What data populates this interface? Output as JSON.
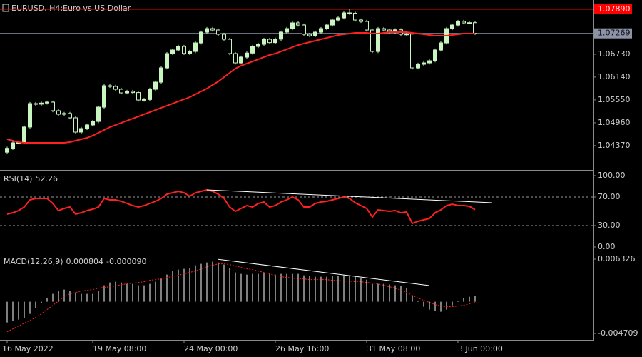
{
  "chart_data": [
    {
      "type": "candlestick",
      "title": "EURUSD, H4:",
      "subtitle": "Euro vs US Dollar",
      "categories": [
        "16 May 2022",
        null,
        null,
        null,
        null,
        null,
        null,
        null,
        null,
        null,
        null,
        null,
        null,
        null,
        null,
        "19 May 08:00",
        null,
        null,
        null,
        null,
        null,
        null,
        null,
        null,
        null,
        null,
        null,
        null,
        null,
        null,
        null,
        "24 May 00:00",
        null,
        null,
        null,
        null,
        null,
        null,
        null,
        null,
        null,
        null,
        null,
        null,
        null,
        null,
        null,
        "26 May 16:00",
        null,
        null,
        null,
        null,
        null,
        null,
        null,
        null,
        null,
        null,
        null,
        null,
        null,
        null,
        null,
        "31 May 08:00",
        null,
        null,
        null,
        null,
        null,
        null,
        null,
        null,
        null,
        null,
        null,
        null,
        null,
        null,
        null,
        "3 Jun 00:00",
        null,
        null,
        null
      ],
      "open": [
        1.042,
        1.043,
        1.04442,
        1.0445,
        1.0485,
        1.05456,
        1.0544,
        1.0547,
        1.05493,
        1.05272,
        1.0518,
        1.052,
        1.05088,
        1.04719,
        1.04811,
        1.04903,
        1.04995,
        1.05364,
        1.05917,
        1.059,
        1.05825,
        1.05733,
        1.0577,
        1.0574,
        1.05548,
        1.0556,
        1.05825,
        1.06009,
        1.06378,
        1.06747,
        1.06839,
        1.06931,
        1.0675,
        1.06802,
        1.07023,
        1.073,
        1.07392,
        1.07355,
        1.07245,
        1.07116,
        1.06747,
        1.06507,
        1.06655,
        1.0676,
        1.06931,
        1.06987,
        1.07116,
        1.0703,
        1.0712,
        1.073,
        1.07392,
        1.0754,
        1.07484,
        1.07245,
        1.07208,
        1.073,
        1.07392,
        1.07484,
        1.07613,
        1.07669,
        1.07798,
        1.0779,
        1.07613,
        1.07577,
        1.07355,
        1.06802,
        1.07392,
        1.07355,
        1.073,
        1.0736,
        1.07245,
        1.0725,
        1.06378,
        1.0647,
        1.06507,
        1.06562,
        1.06839,
        1.07023,
        1.07392,
        1.07484,
        1.07577,
        1.0754,
        1.07545
      ],
      "high": [
        1.0434,
        1.04482,
        1.0449,
        1.0489,
        1.05496,
        1.05496,
        1.0551,
        1.05533,
        1.05533,
        1.05312,
        1.0524,
        1.0524,
        1.05128,
        1.04851,
        1.04943,
        1.05035,
        1.05404,
        1.05957,
        1.05957,
        1.0594,
        1.05865,
        1.0581,
        1.0581,
        1.0578,
        1.056,
        1.05865,
        1.06049,
        1.06418,
        1.06787,
        1.06879,
        1.06971,
        1.06971,
        1.06842,
        1.07063,
        1.0734,
        1.07432,
        1.07432,
        1.07395,
        1.07285,
        1.07156,
        1.06787,
        1.06695,
        1.068,
        1.06971,
        1.07027,
        1.07156,
        1.07156,
        1.0716,
        1.0734,
        1.07432,
        1.0758,
        1.0758,
        1.07524,
        1.07285,
        1.0734,
        1.07432,
        1.07524,
        1.07653,
        1.07709,
        1.07838,
        1.0789,
        1.0783,
        1.07653,
        1.07617,
        1.07395,
        1.07432,
        1.07432,
        1.07395,
        1.074,
        1.074,
        1.0729,
        1.0729,
        1.0651,
        1.06547,
        1.06602,
        1.06879,
        1.07063,
        1.07432,
        1.07524,
        1.07617,
        1.07617,
        1.07585,
        1.07585
      ],
      "low": [
        1.0416,
        1.0426,
        1.04402,
        1.0441,
        1.0481,
        1.054,
        1.054,
        1.0543,
        1.05232,
        1.0514,
        1.0514,
        1.05048,
        1.04679,
        1.04679,
        1.04771,
        1.04863,
        1.04955,
        1.05324,
        1.0586,
        1.05785,
        1.05693,
        1.05693,
        1.057,
        1.05508,
        1.05508,
        1.0552,
        1.05785,
        1.05969,
        1.06338,
        1.06707,
        1.06799,
        1.0671,
        1.0671,
        1.06762,
        1.06983,
        1.0726,
        1.07315,
        1.07205,
        1.07076,
        1.06707,
        1.06467,
        1.06467,
        1.06615,
        1.0672,
        1.06891,
        1.06947,
        1.0699,
        1.0699,
        1.0708,
        1.0726,
        1.07352,
        1.07444,
        1.07205,
        1.07168,
        1.07168,
        1.0726,
        1.07352,
        1.07444,
        1.07573,
        1.07629,
        1.0775,
        1.07573,
        1.07537,
        1.07315,
        1.06762,
        1.06762,
        1.07315,
        1.0726,
        1.0726,
        1.07205,
        1.07205,
        1.06338,
        1.06338,
        1.0643,
        1.06467,
        1.06522,
        1.06799,
        1.06983,
        1.07352,
        1.07444,
        1.075,
        1.075,
        1.07229
      ],
      "close": [
        1.043,
        1.04442,
        1.0445,
        1.0485,
        1.05456,
        1.0544,
        1.0547,
        1.05493,
        1.05272,
        1.0518,
        1.052,
        1.05088,
        1.04719,
        1.04811,
        1.04903,
        1.04995,
        1.05364,
        1.05917,
        1.059,
        1.05825,
        1.05733,
        1.0577,
        1.0574,
        1.05548,
        1.0556,
        1.05825,
        1.06009,
        1.06378,
        1.06747,
        1.06839,
        1.06931,
        1.0675,
        1.06802,
        1.07023,
        1.073,
        1.07392,
        1.07355,
        1.07245,
        1.07116,
        1.06747,
        1.06507,
        1.06655,
        1.0676,
        1.06931,
        1.06987,
        1.07116,
        1.0703,
        1.0712,
        1.073,
        1.07392,
        1.0754,
        1.07484,
        1.07245,
        1.07208,
        1.073,
        1.07392,
        1.07484,
        1.07613,
        1.07669,
        1.07798,
        1.0779,
        1.07613,
        1.07577,
        1.07355,
        1.06802,
        1.07392,
        1.07355,
        1.073,
        1.0736,
        1.07245,
        1.0725,
        1.06378,
        1.0647,
        1.06507,
        1.06562,
        1.06839,
        1.07023,
        1.07392,
        1.07484,
        1.07577,
        1.0754,
        1.07545,
        1.07269
      ],
      "up_color": "#c8f5c0",
      "down_color": "#000000",
      "wick_color": "#c8f5c0",
      "ma": {
        "color": "#ff2020",
        "values": [
          1.04534,
          1.04497,
          1.04461,
          1.04442,
          1.04442,
          1.04442,
          1.04442,
          1.04442,
          1.04442,
          1.04442,
          1.04442,
          1.04461,
          1.04497,
          1.04534,
          1.04571,
          1.04627,
          1.047,
          1.04774,
          1.04848,
          1.04903,
          1.04958,
          1.05014,
          1.05069,
          1.05124,
          1.0518,
          1.05235,
          1.0529,
          1.05346,
          1.05401,
          1.05456,
          1.05512,
          1.05567,
          1.05622,
          1.05696,
          1.0577,
          1.05843,
          1.05936,
          1.06028,
          1.06138,
          1.06249,
          1.0636,
          1.06433,
          1.06489,
          1.06544,
          1.06599,
          1.06655,
          1.0671,
          1.06747,
          1.06802,
          1.06857,
          1.06913,
          1.06968,
          1.07005,
          1.07042,
          1.07079,
          1.07116,
          1.07152,
          1.07189,
          1.07226,
          1.07245,
          1.07263,
          1.07282,
          1.07282,
          1.07282,
          1.07263,
          1.07263,
          1.07282,
          1.073,
          1.073,
          1.073,
          1.073,
          1.07282,
          1.07263,
          1.07245,
          1.07226,
          1.07208,
          1.07208,
          1.07208,
          1.07226,
          1.07245,
          1.07263,
          1.07263,
          1.07263
        ]
      },
      "ylim": [
        1.0376,
        1.0813
      ],
      "yticks": [
        {
          "value": 1.0673,
          "label": "1.06730"
        },
        {
          "value": 1.0614,
          "label": "1.06140"
        },
        {
          "value": 1.0555,
          "label": "1.05550"
        },
        {
          "value": 1.0496,
          "label": "1.04960"
        },
        {
          "value": 1.0437,
          "label": "1.04370"
        }
      ],
      "hlines": [
        {
          "value": 1.0789,
          "label": "1.07890",
          "color": "#ff0000"
        },
        {
          "value": 1.07269,
          "label": "1.07269",
          "color": "#8c93a8"
        }
      ]
    },
    {
      "type": "line",
      "title": "RSI(14)",
      "series": [
        {
          "color": "#ff2020",
          "values": [
            46,
            48,
            51,
            56,
            66,
            68,
            68,
            68,
            61,
            51,
            54,
            56,
            46,
            48,
            51,
            53,
            56,
            68,
            66,
            66,
            64,
            61,
            58,
            56,
            58,
            61,
            64,
            68,
            74,
            76,
            78,
            76,
            71,
            76,
            78,
            80,
            78,
            74,
            68,
            56,
            50,
            54,
            58,
            56,
            61,
            63,
            56,
            58,
            63,
            66,
            70,
            66,
            56,
            56,
            61,
            63,
            64,
            66,
            68,
            70,
            68,
            62,
            58,
            54,
            42,
            52,
            51,
            50,
            51,
            48,
            49,
            33,
            36,
            38,
            40,
            48,
            52,
            58,
            60,
            58,
            58,
            57,
            52.26
          ]
        }
      ],
      "levels": [
        70,
        30
      ],
      "trendlines": [
        {
          "x": [
            35,
            85
          ],
          "values": [
            80,
            62
          ],
          "color": "#ffffff"
        }
      ],
      "ylim": [
        -6,
        106
      ],
      "yticks": [
        {
          "value": 100,
          "label": "100.00"
        },
        {
          "value": 70,
          "label": "70.00"
        },
        {
          "value": 30,
          "label": "30.00"
        },
        {
          "value": 0,
          "label": "0.00"
        }
      ]
    },
    {
      "type": "macd",
      "title": "MACD(12,26,9)",
      "header_values": [
        0.000804,
        {
          "value": -9e-05,
          "label": "-0.000090"
        }
      ],
      "histogram": {
        "color": "#ffffff",
        "values": [
          -0.003077,
          -0.002865,
          -0.002653,
          -0.00244,
          -0.001804,
          -0.000955,
          -0.000212,
          0.000531,
          0.001167,
          0.001592,
          0.001804,
          0.001592,
          0.001379,
          0.001167,
          0.001167,
          0.001167,
          0.001592,
          0.00244,
          0.002865,
          0.002971,
          0.002865,
          0.002759,
          0.002653,
          0.00244,
          0.00244,
          0.002653,
          0.002971,
          0.003501,
          0.004032,
          0.004562,
          0.004775,
          0.004881,
          0.004987,
          0.005411,
          0.005623,
          0.005836,
          0.005942,
          0.005836,
          0.005517,
          0.004987,
          0.00435,
          0.004138,
          0.004032,
          0.004138,
          0.004138,
          0.004244,
          0.004138,
          0.004032,
          0.004138,
          0.004138,
          0.004138,
          0.004138,
          0.003926,
          0.00382,
          0.003714,
          0.003714,
          0.003714,
          0.00382,
          0.00382,
          0.003926,
          0.00382,
          0.003714,
          0.003501,
          0.003289,
          0.002653,
          0.002653,
          0.002653,
          0.002546,
          0.00244,
          0.002334,
          0.002016,
          0.000955,
          0.000106,
          -0.000743,
          -0.001167,
          -0.001379,
          -0.001485,
          -0.001167,
          -0.000531,
          0.000106,
          0.000531,
          0.000743,
          0.000804
        ]
      },
      "signal": {
        "color": "#ff2020",
        "values": [
          -0.004456,
          -0.004032,
          -0.003607,
          -0.003183,
          -0.002759,
          -0.002334,
          -0.001804,
          -0.001167,
          -0.000531,
          0.000106,
          0.000743,
          0.001167,
          0.001379,
          0.001592,
          0.001698,
          0.001804,
          0.002016,
          0.002122,
          0.002228,
          0.002334,
          0.002546,
          0.002653,
          0.002759,
          0.002865,
          0.002971,
          0.003183,
          0.003289,
          0.003395,
          0.003607,
          0.003714,
          0.003926,
          0.004138,
          0.00435,
          0.004562,
          0.004881,
          0.005199,
          0.005411,
          0.005623,
          0.005623,
          0.005517,
          0.005305,
          0.005093,
          0.004881,
          0.004775,
          0.004562,
          0.00435,
          0.004138,
          0.003926,
          0.003714,
          0.003607,
          0.003501,
          0.003395,
          0.003395,
          0.003289,
          0.003289,
          0.003289,
          0.003289,
          0.003183,
          0.003183,
          0.003077,
          0.003077,
          0.002971,
          0.002971,
          0.002865,
          0.002759,
          0.002653,
          0.00244,
          0.002228,
          0.002016,
          0.001698,
          0.001379,
          0.000955,
          0.000531,
          0.000212,
          -0.000106,
          -0.000424,
          -0.000637,
          -0.000743,
          -0.000743,
          -0.000637,
          -0.000531,
          -0.000318,
          -9e-05
        ]
      },
      "trendlines": [
        {
          "x": [
            37,
            74
          ],
          "values": [
            0.0063,
            0.0024
          ],
          "color": "#ffffff"
        }
      ],
      "ylim": [
        -0.005558,
        0.007069
      ],
      "yticks": [
        0.006326,
        -0.004709
      ]
    }
  ]
}
